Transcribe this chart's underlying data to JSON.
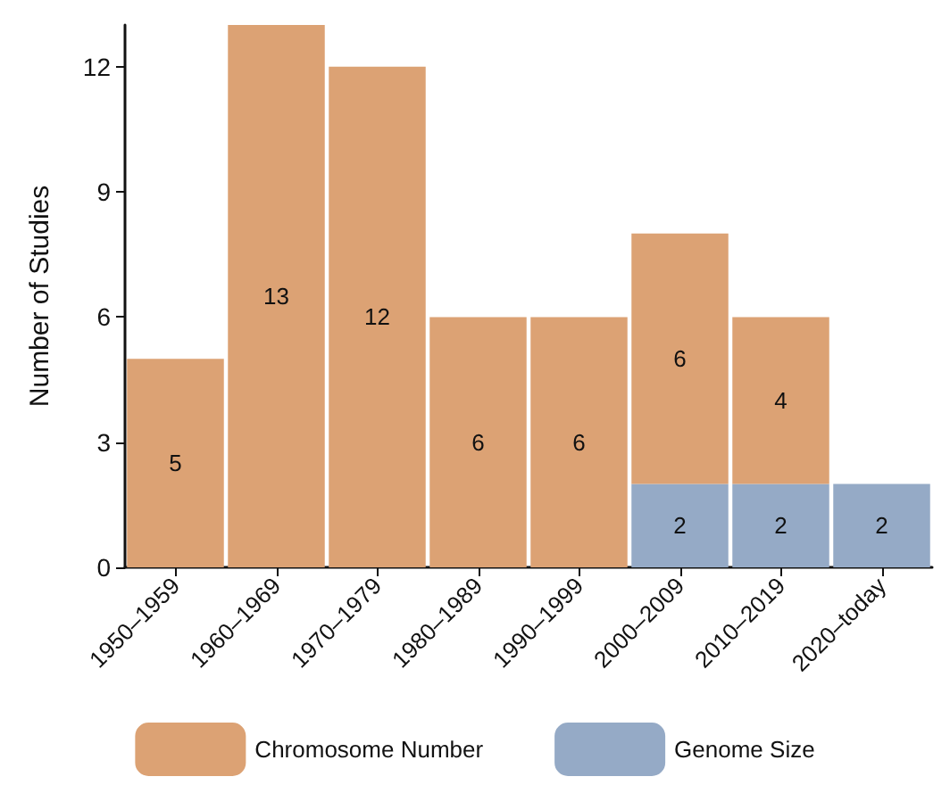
{
  "chart_data": {
    "type": "bar",
    "ylabel": "Number of Studies",
    "categories": [
      "1950–1959",
      "1960–1969",
      "1970–1979",
      "1980–1989",
      "1990–1999",
      "2000–2009",
      "2010–2019",
      "2020–today"
    ],
    "series": [
      {
        "name": "Genome Size",
        "color": "#95aac6",
        "values": [
          null,
          null,
          null,
          null,
          null,
          2,
          2,
          2
        ]
      },
      {
        "name": "Chromosome Number",
        "color": "#dca274",
        "values": [
          5,
          13,
          12,
          6,
          6,
          6,
          4,
          null
        ]
      }
    ],
    "stacked": true,
    "ylim": [
      0,
      13
    ],
    "yticks": [
      0,
      3,
      6,
      9,
      12
    ],
    "grid": false,
    "legend": "bottom",
    "data_labels": true
  }
}
